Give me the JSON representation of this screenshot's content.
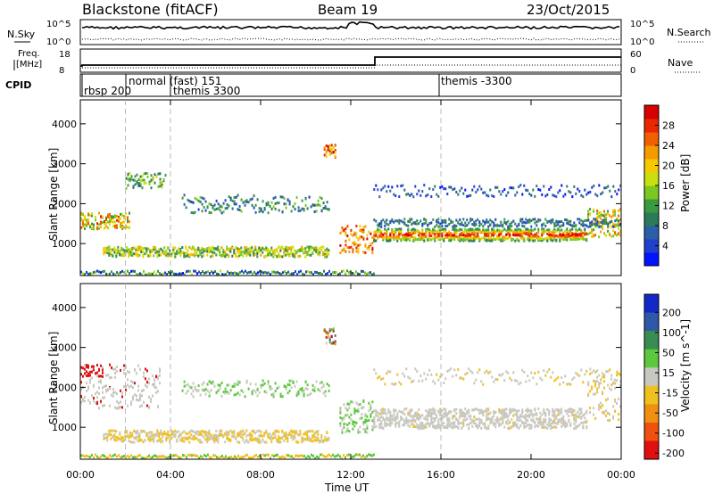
{
  "header": {
    "station": "Blackstone (fitACF)",
    "beam": "Beam 19",
    "date": "23/Oct/2015"
  },
  "noise_panel": {
    "left_label": "N.Sky",
    "right_label": "N.Search",
    "left_top": "10^5",
    "left_bottom": "10^0",
    "right_top": "10^5",
    "right_bottom": "10^0"
  },
  "freq_panel": {
    "left_label_1": "Freq.",
    "left_label_2": "[MHz]",
    "right_label": "Nave",
    "left_top": "18",
    "left_bottom": "8",
    "right_top": "60",
    "right_bottom": "0"
  },
  "cpid_panel": {
    "label": "CPID",
    "programs": [
      {
        "name": "rbsp 200",
        "start": "00:00"
      },
      {
        "name": "normal (fast) 151",
        "start": "~02:00"
      },
      {
        "name": "themis 3300",
        "start": "04:00"
      },
      {
        "name": "themis -3300",
        "start": "16:00"
      }
    ]
  },
  "x_axis": {
    "label": "Time UT",
    "ticks": [
      "00:00",
      "04:00",
      "08:00",
      "12:00",
      "16:00",
      "20:00",
      "00:00"
    ]
  },
  "power_colorbar": {
    "label": "Power [dB]",
    "ticks": [
      "4",
      "8",
      "12",
      "16",
      "20",
      "24",
      "28"
    ],
    "colors": [
      "#0014ff",
      "#1f3fcc",
      "#2d5fa8",
      "#2b7a5a",
      "#3a9a40",
      "#7cc820",
      "#c8e010",
      "#f5c800",
      "#f59a00",
      "#f06000",
      "#e82800",
      "#d80000"
    ]
  },
  "velocity_colorbar": {
    "label": "Velocity [m s^-1]",
    "ticks": [
      "200",
      "100",
      "50",
      "15",
      "-15",
      "-50",
      "-100",
      "-200"
    ],
    "colors": [
      "#1428c8",
      "#2e58a8",
      "#3a8c50",
      "#5cc83c",
      "#c8c8c0",
      "#f0c020",
      "#f09010",
      "#f05010",
      "#e01010"
    ]
  },
  "chart_data": [
    {
      "type": "heatmap",
      "title": "Power",
      "xlabel": "Time UT",
      "ylabel": "Slant Range [km]",
      "xlim_hours": [
        0,
        24
      ],
      "ylim_km": [
        200,
        4600
      ],
      "y_ticks": [
        1000,
        2000,
        3000,
        4000
      ],
      "colorbar_range_db": [
        0,
        30
      ],
      "scatter_bands": [
        {
          "name": "main band",
          "t_hours": [
            13,
            24
          ],
          "range_km": [
            1100,
            1400
          ],
          "peak_power_db": 28
        },
        {
          "name": "low band",
          "t_hours": [
            1,
            11
          ],
          "range_km": [
            700,
            1000
          ],
          "peak_power_db": 16
        },
        {
          "name": "early band",
          "t_hours": [
            0,
            2
          ],
          "range_km": [
            1400,
            1800
          ],
          "peak_power_db": 20
        },
        {
          "name": "mid arc",
          "t_hours": [
            4,
            11
          ],
          "range_km": [
            1800,
            2300
          ],
          "peak_power_db": 12
        },
        {
          "name": "upper band",
          "t_hours": [
            13,
            24
          ],
          "range_km": [
            2200,
            2500
          ],
          "peak_power_db": 6
        }
      ]
    },
    {
      "type": "heatmap",
      "title": "Velocity",
      "xlabel": "Time UT",
      "ylabel": "Slant Range [km]",
      "xlim_hours": [
        0,
        24
      ],
      "ylim_km": [
        200,
        4600
      ],
      "y_ticks": [
        1000,
        2000,
        3000,
        4000
      ],
      "colorbar_range_ms": [
        -200,
        200
      ]
    }
  ]
}
